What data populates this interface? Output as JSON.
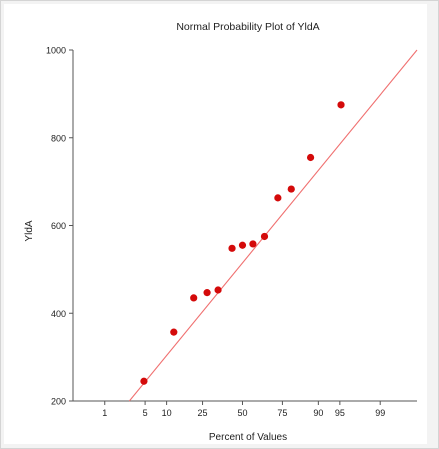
{
  "chart_data": {
    "type": "scatter",
    "title": "Normal Probability Plot of YldA",
    "xlabel": "Percent of Values",
    "ylabel": "YldA",
    "x_scale": "normal-probability",
    "xlim_percent": [
      0.21,
      99.84
    ],
    "ylim": [
      200,
      1000
    ],
    "x_ticks": [
      1,
      5,
      10,
      25,
      50,
      75,
      90,
      95,
      99
    ],
    "y_ticks": [
      200,
      400,
      600,
      800,
      1000
    ],
    "grid": false,
    "legend": "none",
    "points": [
      {
        "x": 4.8,
        "y": 245
      },
      {
        "x": 12.3,
        "y": 357
      },
      {
        "x": 20.5,
        "y": 435
      },
      {
        "x": 27.5,
        "y": 447
      },
      {
        "x": 34.0,
        "y": 453
      },
      {
        "x": 43.0,
        "y": 548
      },
      {
        "x": 50.0,
        "y": 555
      },
      {
        "x": 57.0,
        "y": 558
      },
      {
        "x": 64.5,
        "y": 575
      },
      {
        "x": 72.5,
        "y": 663
      },
      {
        "x": 79.5,
        "y": 683
      },
      {
        "x": 87.5,
        "y": 755
      },
      {
        "x": 95.2,
        "y": 875
      }
    ],
    "fit_line": {
      "from": {
        "x": 2.8,
        "y": 200
      },
      "to": {
        "x": 99.84,
        "y": 1000
      }
    },
    "colors": {
      "points": "#d40a0a",
      "fit_line": "#f07070",
      "axes": "#555555"
    }
  }
}
